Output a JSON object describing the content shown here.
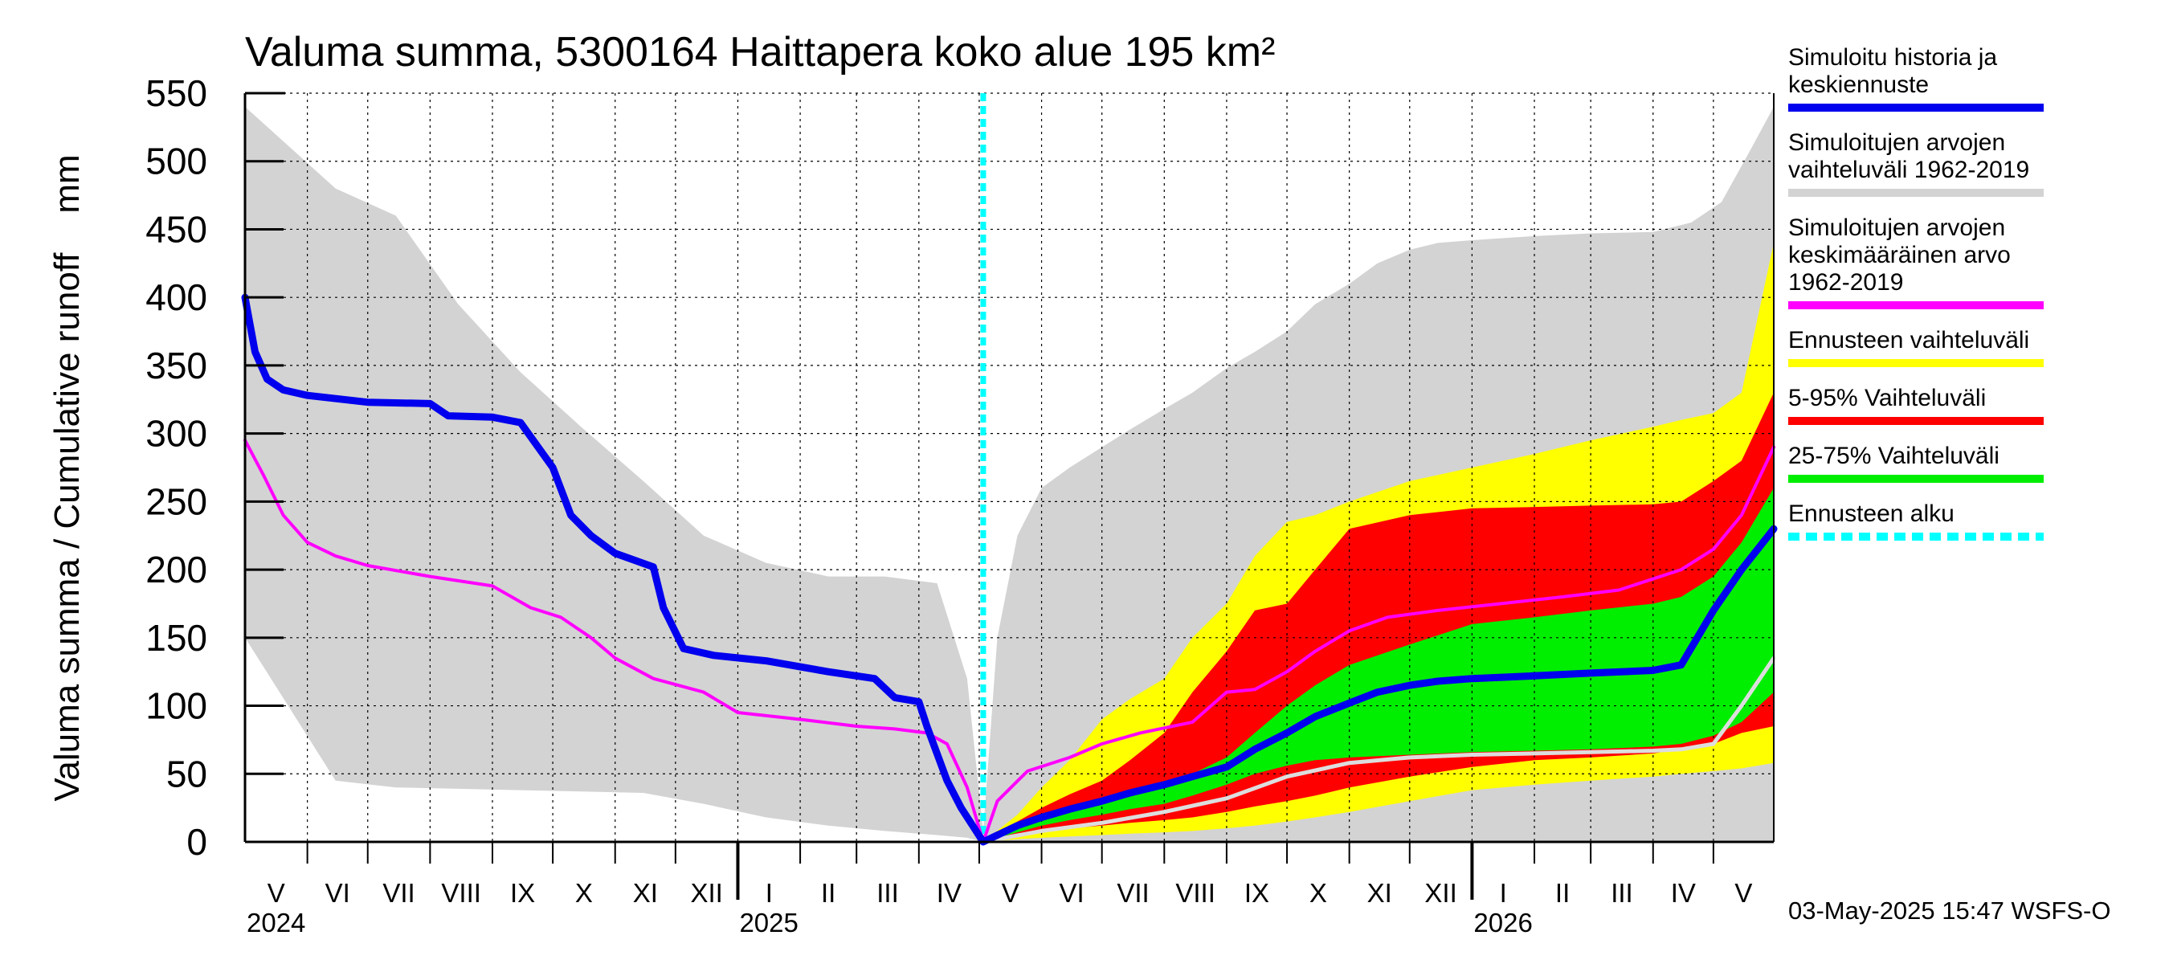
{
  "chart_data": {
    "type": "area",
    "title": "Valuma summa, 5300164 Haittapera koko alue 195 km²",
    "ylabel": "Valuma summa / Cumulative runoff    mm",
    "ylim": [
      0,
      550
    ],
    "yticks": [
      "0",
      "50",
      "100",
      "150",
      "200",
      "250",
      "300",
      "350",
      "400",
      "450",
      "500",
      "550"
    ],
    "x_start": "2024-05-01",
    "x_end": "2026-05-31",
    "forecast_start": "2025-05-03",
    "months": [
      {
        "label": "V",
        "start": "2024-05-01"
      },
      {
        "label": "VI",
        "start": "2024-06-01"
      },
      {
        "label": "VII",
        "start": "2024-07-01"
      },
      {
        "label": "VIII",
        "start": "2024-08-01"
      },
      {
        "label": "IX",
        "start": "2024-09-01"
      },
      {
        "label": "X",
        "start": "2024-10-01"
      },
      {
        "label": "XI",
        "start": "2024-11-01"
      },
      {
        "label": "XII",
        "start": "2024-12-01"
      },
      {
        "label": "I",
        "start": "2025-01-01"
      },
      {
        "label": "II",
        "start": "2025-02-01"
      },
      {
        "label": "III",
        "start": "2025-03-01"
      },
      {
        "label": "IV",
        "start": "2025-04-01"
      },
      {
        "label": "V",
        "start": "2025-05-01"
      },
      {
        "label": "VI",
        "start": "2025-06-01"
      },
      {
        "label": "VII",
        "start": "2025-07-01"
      },
      {
        "label": "VIII",
        "start": "2025-08-01"
      },
      {
        "label": "IX",
        "start": "2025-09-01"
      },
      {
        "label": "X",
        "start": "2025-10-01"
      },
      {
        "label": "XI",
        "start": "2025-11-01"
      },
      {
        "label": "XII",
        "start": "2025-12-01"
      },
      {
        "label": "I",
        "start": "2026-01-01"
      },
      {
        "label": "II",
        "start": "2026-02-01"
      },
      {
        "label": "III",
        "start": "2026-03-01"
      },
      {
        "label": "IV",
        "start": "2026-04-01"
      },
      {
        "label": "V",
        "start": "2026-05-01"
      }
    ],
    "years": [
      {
        "label": "2024",
        "date": "2024-05-01"
      },
      {
        "label": "2025",
        "date": "2025-01-01"
      },
      {
        "label": "2026",
        "date": "2026-01-01"
      }
    ],
    "series": [
      {
        "name": "Simuloitujen arvojen vaihteluväli 1962-2019",
        "kind": "band",
        "color": "#d3d3d3",
        "x": [
          "2024-05-01",
          "2024-06-15",
          "2024-07-15",
          "2024-08-15",
          "2024-09-15",
          "2024-10-15",
          "2024-11-15",
          "2024-12-15",
          "2025-01-15",
          "2025-02-15",
          "2025-03-15",
          "2025-04-10",
          "2025-04-25",
          "2025-05-03",
          "2025-05-10",
          "2025-05-20",
          "2025-06-01",
          "2025-06-15",
          "2025-07-01",
          "2025-07-15",
          "2025-08-01",
          "2025-08-15",
          "2025-09-01",
          "2025-09-15",
          "2025-10-01",
          "2025-10-15",
          "2025-11-01",
          "2025-11-15",
          "2025-12-01",
          "2025-12-15",
          "2026-01-01",
          "2026-02-01",
          "2026-03-01",
          "2026-04-01",
          "2026-04-20",
          "2026-05-05",
          "2026-05-20",
          "2026-05-31"
        ],
        "upper": [
          540,
          480,
          460,
          395,
          345,
          305,
          265,
          225,
          205,
          195,
          195,
          190,
          120,
          8,
          150,
          225,
          260,
          275,
          290,
          303,
          318,
          330,
          348,
          360,
          375,
          395,
          410,
          425,
          435,
          440,
          442,
          445,
          447,
          448,
          455,
          470,
          510,
          540
        ],
        "lower": [
          150,
          45,
          40,
          39,
          38,
          37,
          36,
          28,
          18,
          12,
          8,
          5,
          3,
          0,
          0,
          0,
          0,
          0,
          0,
          0,
          0,
          0,
          0,
          0,
          0,
          0,
          0,
          0,
          0,
          0,
          0,
          0,
          0,
          0,
          0,
          0,
          0,
          0
        ]
      },
      {
        "name": "Ennusteen vaihteluväli",
        "kind": "band",
        "color": "#ffff00",
        "x": [
          "2025-05-03",
          "2025-05-20",
          "2025-06-01",
          "2025-06-15",
          "2025-07-01",
          "2025-07-15",
          "2025-08-01",
          "2025-08-15",
          "2025-09-01",
          "2025-09-15",
          "2025-10-01",
          "2025-10-15",
          "2025-11-01",
          "2025-12-01",
          "2026-01-01",
          "2026-02-01",
          "2026-03-01",
          "2026-04-01",
          "2026-04-15",
          "2026-05-01",
          "2026-05-15",
          "2026-05-31"
        ],
        "upper": [
          0,
          20,
          40,
          60,
          90,
          105,
          120,
          150,
          175,
          210,
          235,
          240,
          250,
          265,
          275,
          285,
          295,
          305,
          310,
          315,
          330,
          440
        ],
        "lower": [
          0,
          2,
          3,
          4,
          5,
          6,
          7,
          8,
          10,
          12,
          15,
          18,
          22,
          30,
          38,
          42,
          45,
          48,
          50,
          52,
          54,
          58
        ]
      },
      {
        "name": "5-95% Vaihteluväli",
        "kind": "band",
        "color": "#ff0000",
        "x": [
          "2025-05-03",
          "2025-05-20",
          "2025-06-01",
          "2025-06-15",
          "2025-07-01",
          "2025-07-15",
          "2025-08-01",
          "2025-08-15",
          "2025-09-01",
          "2025-09-15",
          "2025-10-01",
          "2025-10-15",
          "2025-11-01",
          "2025-12-01",
          "2026-01-01",
          "2026-02-01",
          "2026-03-01",
          "2026-04-01",
          "2026-04-15",
          "2026-05-01",
          "2026-05-15",
          "2026-05-31"
        ],
        "upper": [
          0,
          15,
          25,
          35,
          45,
          60,
          80,
          110,
          140,
          170,
          175,
          200,
          230,
          240,
          245,
          246,
          247,
          248,
          250,
          265,
          280,
          330
        ],
        "lower": [
          0,
          5,
          8,
          10,
          12,
          14,
          16,
          18,
          22,
          26,
          30,
          34,
          40,
          48,
          55,
          60,
          62,
          65,
          68,
          72,
          80,
          85
        ]
      },
      {
        "name": "25-75% Vaihteluväli",
        "kind": "band",
        "color": "#00ee00",
        "x": [
          "2025-05-03",
          "2025-05-20",
          "2025-06-01",
          "2025-06-15",
          "2025-07-01",
          "2025-07-15",
          "2025-08-01",
          "2025-08-15",
          "2025-09-01",
          "2025-09-15",
          "2025-10-01",
          "2025-10-15",
          "2025-11-01",
          "2025-12-01",
          "2026-01-01",
          "2026-02-01",
          "2026-03-01",
          "2026-04-01",
          "2026-04-15",
          "2026-05-01",
          "2026-05-15",
          "2026-05-31"
        ],
        "upper": [
          0,
          10,
          18,
          24,
          30,
          36,
          42,
          50,
          62,
          80,
          100,
          115,
          130,
          145,
          160,
          165,
          170,
          175,
          180,
          195,
          220,
          260
        ],
        "lower": [
          0,
          7,
          12,
          16,
          20,
          24,
          28,
          34,
          42,
          50,
          56,
          60,
          62,
          64,
          66,
          67,
          68,
          70,
          72,
          78,
          88,
          110
        ]
      },
      {
        "name": "Simuloitujen arvojen keskimääräinen arvo 1962-2019",
        "kind": "line",
        "color": "#ff00ff",
        "width": 4,
        "x": [
          "2024-05-01",
          "2024-05-10",
          "2024-05-20",
          "2024-06-01",
          "2024-06-15",
          "2024-07-01",
          "2024-08-01",
          "2024-09-01",
          "2024-09-20",
          "2024-10-05",
          "2024-10-20",
          "2024-11-01",
          "2024-11-20",
          "2024-12-15",
          "2025-01-01",
          "2025-02-01",
          "2025-03-01",
          "2025-03-20",
          "2025-04-05",
          "2025-04-15",
          "2025-04-25",
          "2025-05-03",
          "2025-05-10",
          "2025-05-25",
          "2025-06-15",
          "2025-07-01",
          "2025-07-20",
          "2025-08-15",
          "2025-09-01",
          "2025-09-15",
          "2025-10-01",
          "2025-10-15",
          "2025-11-01",
          "2025-11-20",
          "2025-12-15",
          "2026-01-15",
          "2026-02-15",
          "2026-03-15",
          "2026-04-15",
          "2026-05-01",
          "2026-05-15",
          "2026-05-31"
        ],
        "y": [
          295,
          270,
          240,
          220,
          210,
          203,
          195,
          188,
          172,
          165,
          150,
          135,
          120,
          110,
          95,
          90,
          85,
          83,
          80,
          72,
          40,
          0,
          30,
          52,
          62,
          72,
          80,
          88,
          110,
          112,
          125,
          140,
          155,
          165,
          170,
          175,
          180,
          185,
          200,
          215,
          240,
          290
        ]
      },
      {
        "name": "Mediaani",
        "kind": "line",
        "color": "#dddddd",
        "width": 5,
        "x": [
          "2025-05-03",
          "2025-06-01",
          "2025-07-01",
          "2025-08-01",
          "2025-09-01",
          "2025-10-01",
          "2025-11-01",
          "2025-12-01",
          "2026-01-01",
          "2026-02-01",
          "2026-03-01",
          "2026-04-01",
          "2026-04-15",
          "2026-05-01",
          "2026-05-15",
          "2026-05-31"
        ],
        "y": [
          0,
          8,
          14,
          22,
          32,
          48,
          58,
          62,
          64,
          65,
          66,
          67,
          68,
          72,
          100,
          135
        ]
      },
      {
        "name": "Simuloitu historia ja keskiennuste",
        "kind": "line",
        "color": "#0000ee",
        "width": 9,
        "x": [
          "2024-05-01",
          "2024-05-06",
          "2024-05-12",
          "2024-05-20",
          "2024-06-01",
          "2024-07-01",
          "2024-08-01",
          "2024-08-10",
          "2024-09-01",
          "2024-09-15",
          "2024-10-01",
          "2024-10-10",
          "2024-10-20",
          "2024-11-01",
          "2024-11-20",
          "2024-11-25",
          "2024-12-05",
          "2024-12-20",
          "2025-01-15",
          "2025-02-15",
          "2025-03-10",
          "2025-03-20",
          "2025-04-01",
          "2025-04-05",
          "2025-04-15",
          "2025-04-22",
          "2025-05-03",
          "2025-05-20",
          "2025-06-01",
          "2025-06-15",
          "2025-07-01",
          "2025-07-15",
          "2025-08-01",
          "2025-08-15",
          "2025-09-01",
          "2025-09-15",
          "2025-10-01",
          "2025-10-15",
          "2025-11-01",
          "2025-11-15",
          "2025-12-01",
          "2025-12-15",
          "2026-01-01",
          "2026-02-01",
          "2026-03-01",
          "2026-04-01",
          "2026-04-15",
          "2026-05-01",
          "2026-05-15",
          "2026-05-31"
        ],
        "y": [
          400,
          360,
          340,
          332,
          328,
          323,
          322,
          313,
          312,
          308,
          275,
          240,
          225,
          212,
          202,
          172,
          142,
          137,
          133,
          125,
          120,
          106,
          103,
          85,
          45,
          25,
          0,
          12,
          18,
          24,
          30,
          36,
          42,
          48,
          55,
          68,
          80,
          92,
          102,
          110,
          115,
          118,
          120,
          122,
          124,
          126,
          130,
          170,
          200,
          230
        ]
      }
    ],
    "legend": [
      {
        "label": "Simuloitu historia ja\nkeskiennuste",
        "color": "#0000ee",
        "style": "solid"
      },
      {
        "label": "Simuloitujen arvojen\nvaihteluväli 1962-2019",
        "color": "#d3d3d3",
        "style": "solid"
      },
      {
        "label": "Simuloitujen arvojen\nkeskimääräinen arvo\n    1962-2019",
        "color": "#ff00ff",
        "style": "solid"
      },
      {
        "label": "Ennusteen vaihteluväli",
        "color": "#ffff00",
        "style": "solid"
      },
      {
        "label": "5-95% Vaihteluväli",
        "color": "#ff0000",
        "style": "solid"
      },
      {
        "label": "25-75% Vaihteluväli",
        "color": "#00ee00",
        "style": "solid"
      },
      {
        "label": "Ennusteen alku",
        "color": "#00ffff",
        "style": "dotted"
      }
    ]
  },
  "footer": {
    "timestamp": "03-May-2025 15:47 WSFS-O"
  }
}
